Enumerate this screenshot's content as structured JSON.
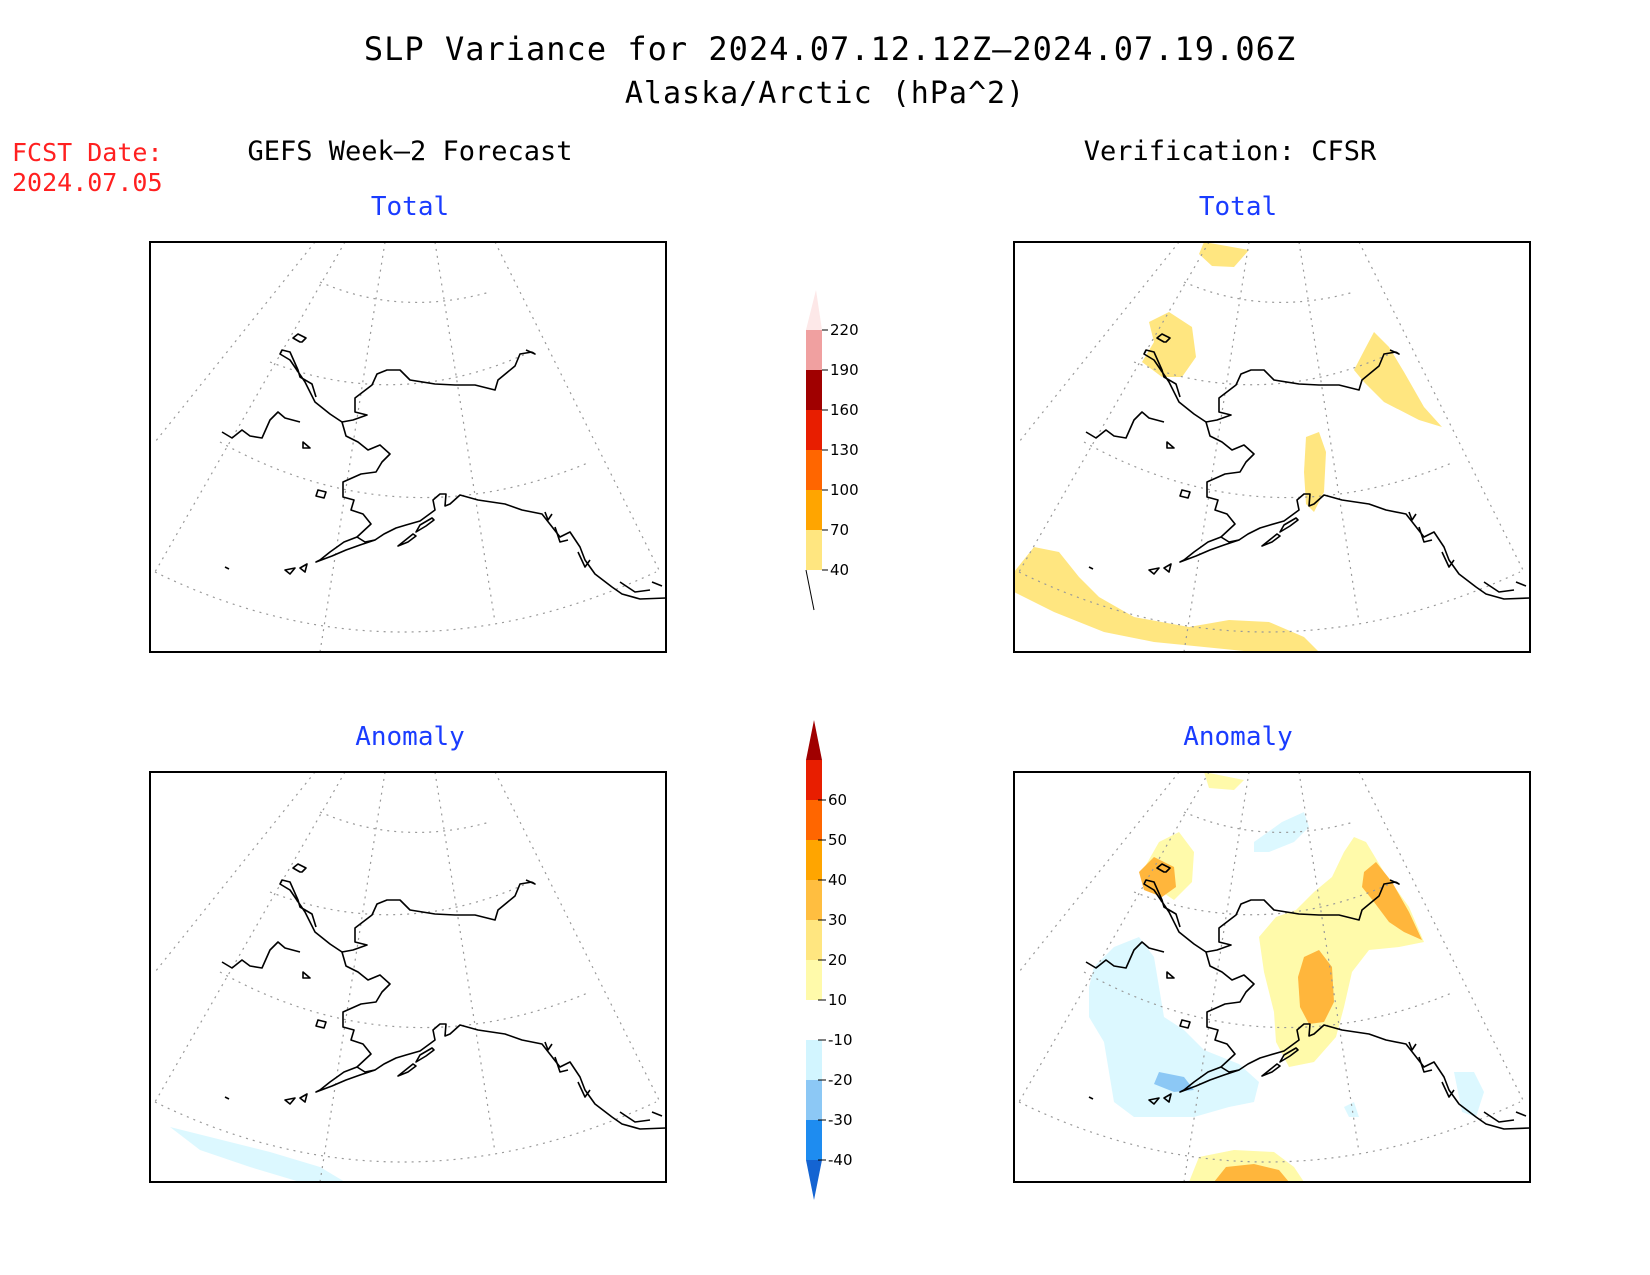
{
  "title": {
    "line1": "SLP Variance for 2024.07.12.12Z–2024.07.19.06Z",
    "line2": "Alaska/Arctic (hPa^2)"
  },
  "forecast_date": {
    "label": "FCST Date:",
    "value": "2024.07.05"
  },
  "columns": {
    "left": "GEFS Week–2 Forecast",
    "right": "Verification: CFSR"
  },
  "panels": {
    "top_left": "Total",
    "top_right": "Total",
    "bottom_left": "Anomaly",
    "bottom_right": "Anomaly"
  },
  "colorbars": {
    "total": {
      "levels": [
        "40",
        "70",
        "100",
        "130",
        "160",
        "190",
        "220"
      ],
      "colors": [
        "#ffe680",
        "#ffa500",
        "#ff6600",
        "#e81e00",
        "#a00000",
        "#f0a0a0",
        "#fde8e8"
      ]
    },
    "anomaly": {
      "levels": [
        "-40",
        "-30",
        "-20",
        "-10",
        "10",
        "20",
        "30",
        "40",
        "50",
        "60"
      ],
      "colors": [
        "#1464d2",
        "#1e8cf0",
        "#8cc8f5",
        "#d2f5ff",
        "#ffffff",
        "#fffaaa",
        "#ffe680",
        "#ffbe40",
        "#ffa500",
        "#ff6600",
        "#e81e00",
        "#a00000"
      ]
    }
  },
  "fill_colors": {
    "light_yellow": "#fff7aa",
    "yellow": "#ffe680",
    "orange": "#ffb63c",
    "light_blue": "#dcf8ff",
    "blue": "#8cc8f5"
  }
}
